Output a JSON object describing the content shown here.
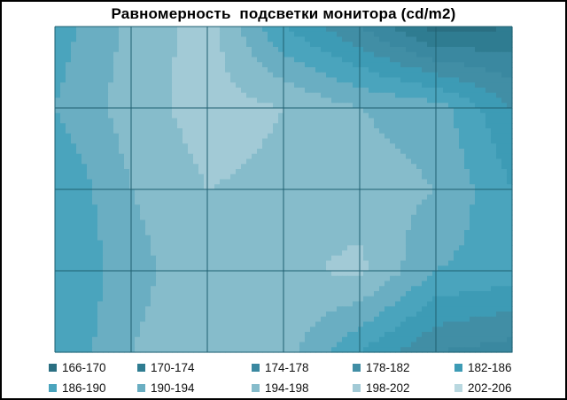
{
  "chart_data": {
    "type": "heatmap",
    "title": "Равномерность  подсветки монитора (cd/m2)",
    "grid": true,
    "legend_position": "bottom",
    "bands": [
      {
        "label": "166-170",
        "color": "#2a6f82"
      },
      {
        "label": "170-174",
        "color": "#2f7c91"
      },
      {
        "label": "174-178",
        "color": "#3a88a0"
      },
      {
        "label": "178-182",
        "color": "#418ea5"
      },
      {
        "label": "182-186",
        "color": "#3d9bb5"
      },
      {
        "label": "186-190",
        "color": "#4aa4bd"
      },
      {
        "label": "190-194",
        "color": "#6aaec2"
      },
      {
        "label": "194-198",
        "color": "#86bccb"
      },
      {
        "label": "198-202",
        "color": "#a2cad6"
      },
      {
        "label": "202-206",
        "color": "#b9d8e0"
      }
    ],
    "values": [
      [
        188,
        195,
        200,
        186,
        178,
        168,
        170
      ],
      [
        190,
        196,
        200,
        198,
        194,
        192,
        182
      ],
      [
        186,
        194,
        198,
        197,
        196,
        194,
        186
      ],
      [
        186,
        192,
        198,
        197,
        199,
        190,
        188
      ],
      [
        186,
        194,
        198,
        196,
        186,
        178,
        176
      ]
    ]
  }
}
